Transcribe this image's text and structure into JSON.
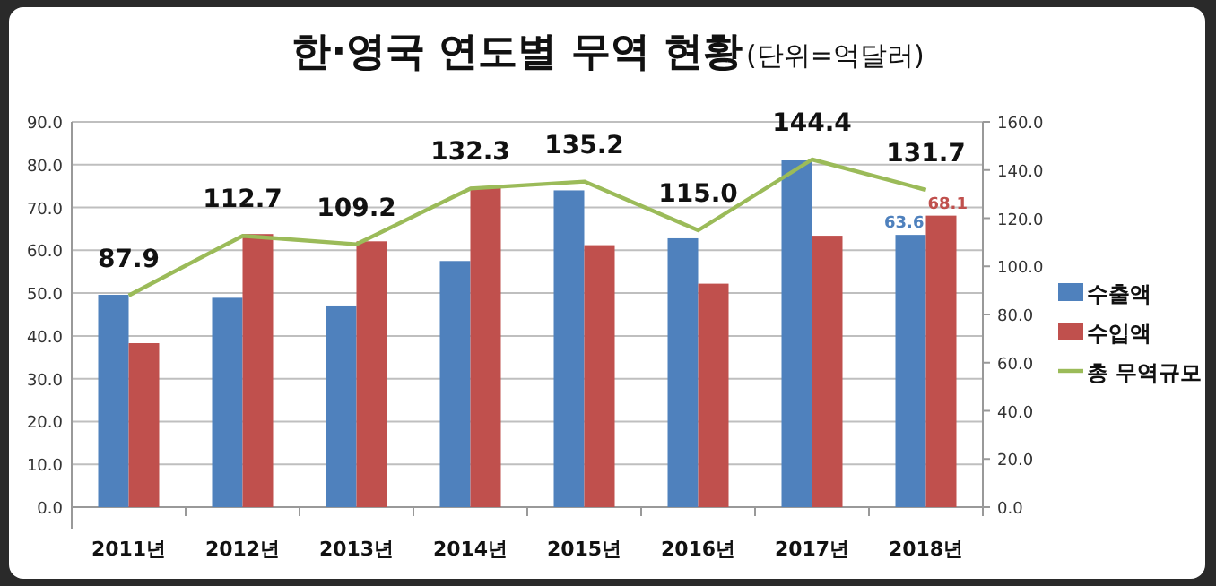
{
  "chart_data": {
    "type": "bar",
    "title": "한·영국 연도별 무역 현황",
    "subtitle": "(단위=억달러)",
    "categories": [
      "2011년",
      "2012년",
      "2013년",
      "2014년",
      "2015년",
      "2016년",
      "2017년",
      "2018년"
    ],
    "series": [
      {
        "name": "수출액",
        "color": "#4f81bd",
        "values": [
          49.6,
          48.9,
          47.1,
          57.5,
          74.0,
          62.8,
          81.0,
          63.6
        ],
        "value_labels": [
          null,
          null,
          null,
          null,
          null,
          null,
          null,
          "63.6"
        ]
      },
      {
        "name": "수입액",
        "color": "#c0504d",
        "values": [
          38.3,
          63.8,
          62.1,
          74.8,
          61.2,
          52.2,
          63.4,
          68.1
        ],
        "value_labels": [
          null,
          null,
          null,
          null,
          null,
          null,
          null,
          "68.1"
        ]
      },
      {
        "name": "총 무역규모",
        "type": "line",
        "axis": "y2",
        "color": "#9bbb59",
        "values": [
          87.9,
          112.7,
          109.2,
          132.3,
          135.2,
          115.0,
          144.4,
          131.7
        ],
        "value_labels": [
          "87.9",
          "112.7",
          "109.2",
          "132.3",
          "135.2",
          "115.0",
          "144.4",
          "131.7"
        ]
      }
    ],
    "ylim": [
      0,
      90
    ],
    "yticks": [
      {
        "value": 0,
        "label": "0.0"
      },
      {
        "value": 10,
        "label": "10.0"
      },
      {
        "value": 20,
        "label": "20.0"
      },
      {
        "value": 30,
        "label": "30.0"
      },
      {
        "value": 40,
        "label": "40.0"
      },
      {
        "value": 50,
        "label": "50.0"
      },
      {
        "value": 60,
        "label": "60.0"
      },
      {
        "value": 70,
        "label": "70.0"
      },
      {
        "value": 80,
        "label": "80.0"
      },
      {
        "value": 90,
        "label": "90.0"
      }
    ],
    "y2lim": [
      0,
      160
    ],
    "y2ticks": [
      {
        "value": 0,
        "label": "0.0"
      },
      {
        "value": 20,
        "label": "20.0"
      },
      {
        "value": 40,
        "label": "40.0"
      },
      {
        "value": 60,
        "label": "60.0"
      },
      {
        "value": 80,
        "label": "80.0"
      },
      {
        "value": 100,
        "label": "100.0"
      },
      {
        "value": 120,
        "label": "120.0"
      },
      {
        "value": 140,
        "label": "140.0"
      },
      {
        "value": 160,
        "label": "160.0"
      }
    ],
    "grid": "y",
    "legend": "right"
  }
}
